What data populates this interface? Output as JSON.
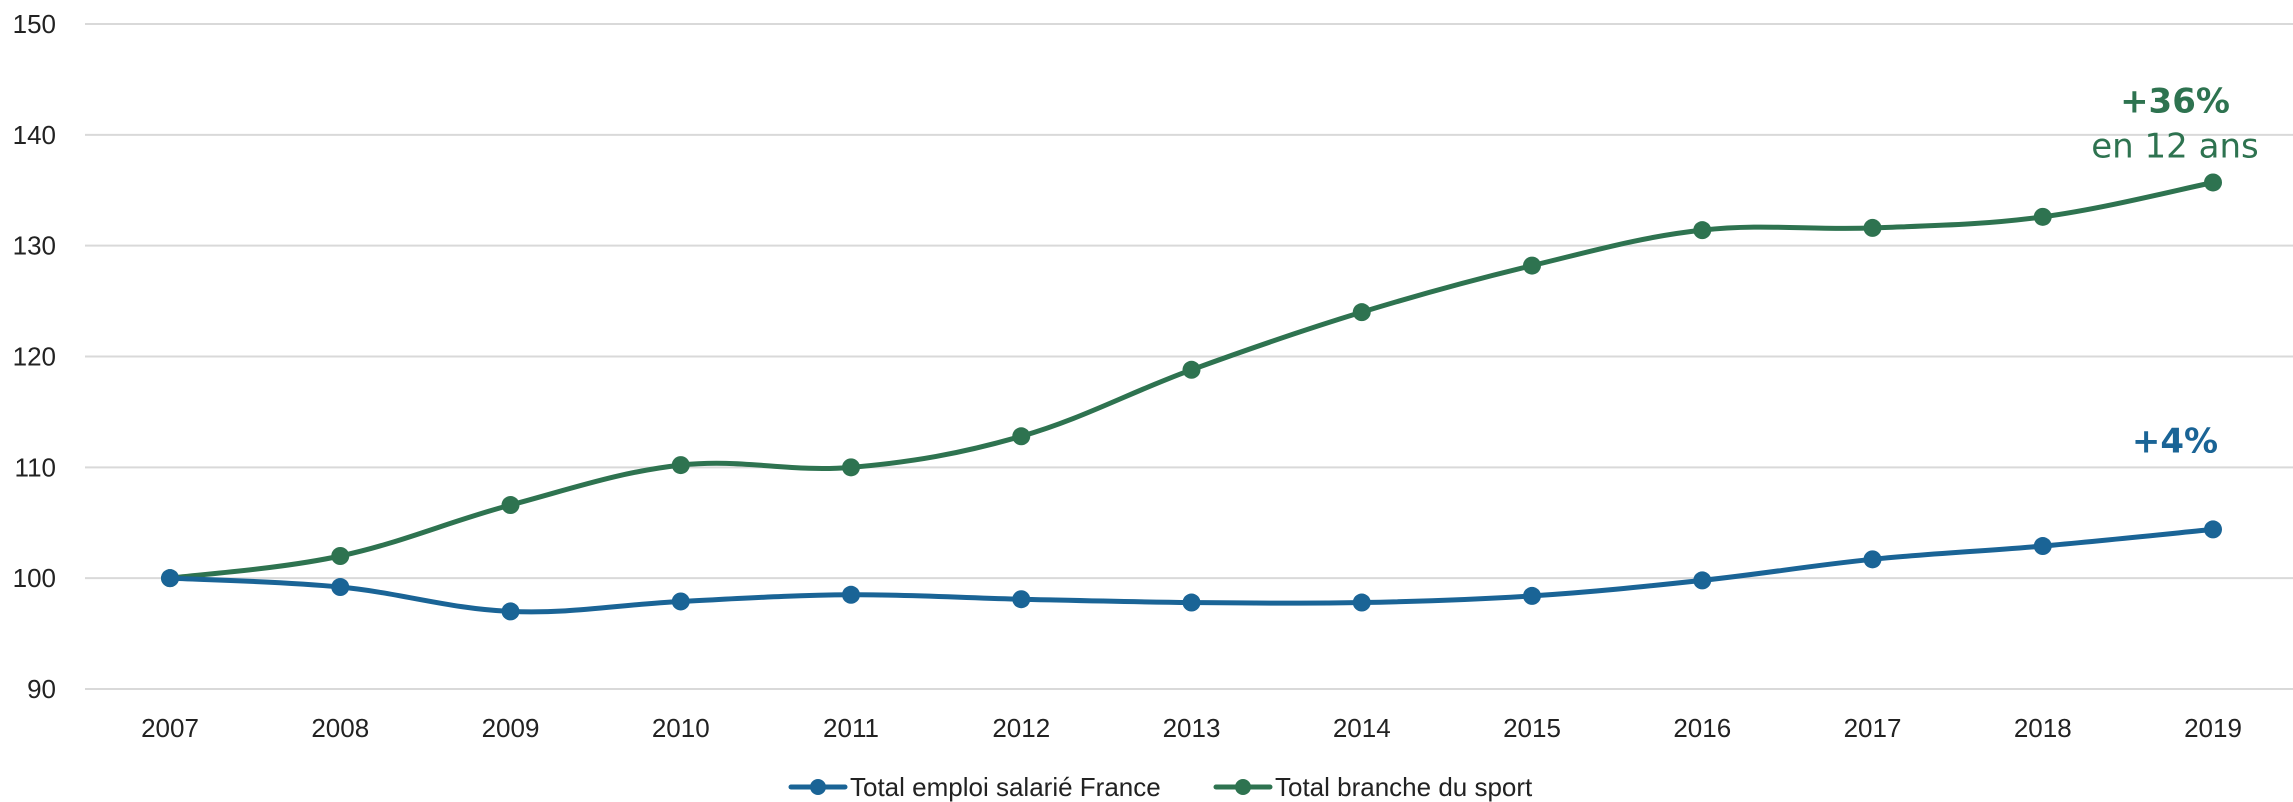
{
  "chart_data": {
    "type": "line",
    "title": "",
    "xlabel": "",
    "ylabel": "",
    "x": [
      "2007",
      "2008",
      "2009",
      "2010",
      "2011",
      "2012",
      "2013",
      "2014",
      "2015",
      "2016",
      "2017",
      "2018",
      "2019"
    ],
    "ylim": [
      90,
      150
    ],
    "yticks": [
      90,
      100,
      110,
      120,
      130,
      140,
      150
    ],
    "grid": true,
    "legend": "bottom-center",
    "series": [
      {
        "name": "Total emploi salarié France",
        "color": "#1a6496",
        "values": [
          100,
          99.2,
          97.0,
          97.9,
          98.5,
          98.1,
          97.8,
          97.8,
          98.4,
          99.8,
          101.7,
          102.9,
          104.4
        ]
      },
      {
        "name": "Total branche du sport",
        "color": "#2e7350",
        "values": [
          100,
          102.0,
          106.6,
          110.2,
          110.0,
          112.8,
          118.8,
          124.0,
          128.2,
          131.4,
          131.6,
          132.6,
          135.7
        ]
      }
    ],
    "annotations": [
      {
        "series": 1,
        "lines": [
          "+36%",
          "en 12 ans"
        ]
      },
      {
        "series": 0,
        "lines": [
          "+4%"
        ]
      }
    ]
  }
}
